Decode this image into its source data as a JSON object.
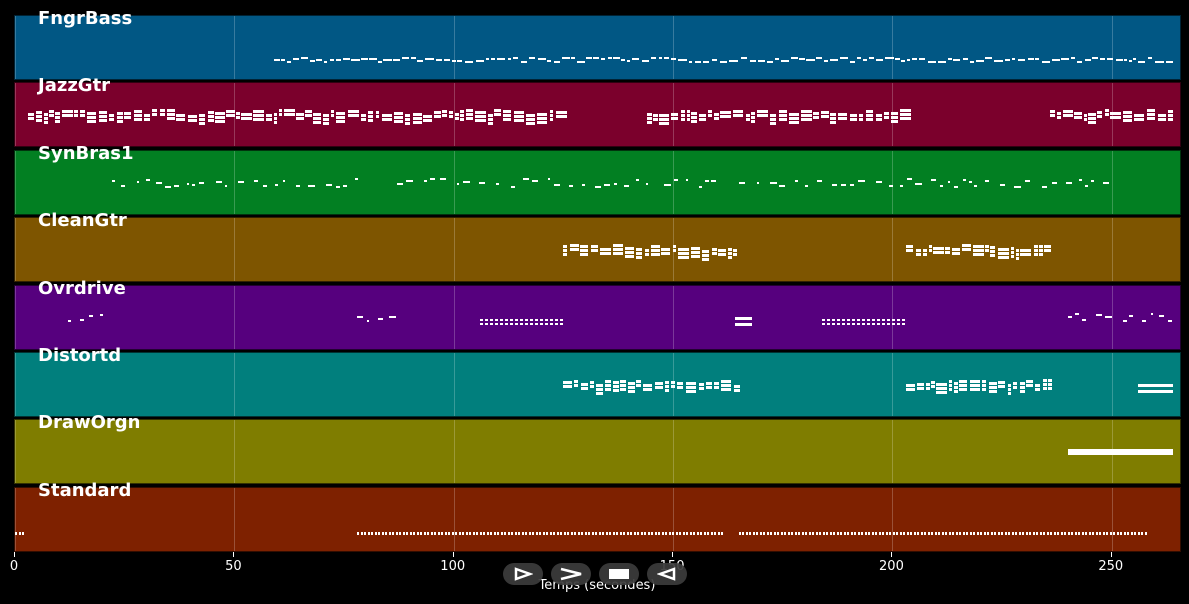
{
  "tracks": [
    {
      "name": "FngrBass",
      "color": "#015784",
      "segments": [
        {
          "start": 59,
          "end": 264,
          "style": "dense-line"
        }
      ]
    },
    {
      "name": "JazzGtr",
      "color": "#7b002c",
      "segments": [
        {
          "start": 3,
          "end": 125,
          "style": "chords"
        },
        {
          "start": 144,
          "end": 202,
          "style": "chords"
        },
        {
          "start": 236,
          "end": 264,
          "style": "chords"
        }
      ]
    },
    {
      "name": "SynBras1",
      "color": "#027f22",
      "segments": [
        {
          "start": 22,
          "end": 78,
          "style": "sparse"
        },
        {
          "start": 87,
          "end": 146,
          "style": "sparse"
        },
        {
          "start": 148,
          "end": 162,
          "style": "sparse"
        },
        {
          "start": 165,
          "end": 250,
          "style": "sparse"
        }
      ]
    },
    {
      "name": "CleanGtr",
      "color": "#7e5500",
      "segments": [
        {
          "start": 125,
          "end": 165,
          "style": "chords"
        },
        {
          "start": 203,
          "end": 236,
          "style": "chords"
        }
      ]
    },
    {
      "name": "Ovrdrive",
      "color": "#56007e",
      "segments": [
        {
          "start": 12,
          "end": 21,
          "style": "sparse"
        },
        {
          "start": 78,
          "end": 87,
          "style": "sparse"
        },
        {
          "start": 106,
          "end": 125,
          "style": "dotted"
        },
        {
          "start": 164,
          "end": 168,
          "style": "block"
        },
        {
          "start": 184,
          "end": 203,
          "style": "dotted"
        },
        {
          "start": 240,
          "end": 264,
          "style": "sparse"
        }
      ]
    },
    {
      "name": "Distortd",
      "color": "#017f7d",
      "segments": [
        {
          "start": 125,
          "end": 165,
          "style": "chords"
        },
        {
          "start": 203,
          "end": 236,
          "style": "chords"
        },
        {
          "start": 256,
          "end": 264,
          "style": "block"
        }
      ]
    },
    {
      "name": "DrawOrgn",
      "color": "#7f7d00",
      "segments": [
        {
          "start": 240,
          "end": 264,
          "style": "bar"
        }
      ]
    },
    {
      "name": "Standard",
      "color": "#7e2100",
      "segments": [
        {
          "start": 0,
          "end": 2,
          "style": "perc"
        },
        {
          "start": 78,
          "end": 161,
          "style": "perc"
        },
        {
          "start": 165,
          "end": 258,
          "style": "perc"
        }
      ]
    }
  ],
  "axis": {
    "min": 0,
    "max": 266,
    "ticks": [
      0,
      50,
      100,
      150,
      200,
      250
    ],
    "tick_labels": [
      "0",
      "50",
      "100",
      "150",
      "200",
      "250"
    ],
    "label": "Temps (secondes)"
  },
  "controls": [
    {
      "icon": "play-outline-icon"
    },
    {
      "icon": "fast-forward-icon"
    },
    {
      "icon": "stop-icon"
    },
    {
      "icon": "rewind-icon"
    }
  ]
}
